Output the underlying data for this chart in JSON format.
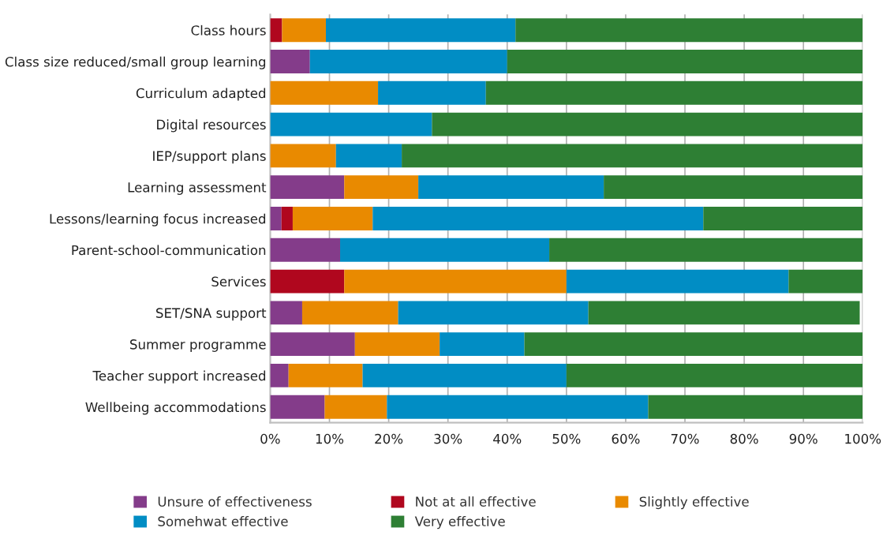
{
  "chart_data": {
    "type": "bar",
    "orientation": "horizontal",
    "stacked": true,
    "categories": [
      "Class hours",
      "Class size reduced/small group learning",
      "Curriculum adapted",
      "Digital resources",
      "IEP/support plans",
      "Learning assessment",
      "Lessons/learning focus increased",
      "Parent-school-communication",
      "Services",
      "SET/SNA support",
      "Summer programme",
      "Teacher support increased",
      "Wellbeing accommodations"
    ],
    "series": [
      {
        "name": "Unsure of effectiveness",
        "color": "#843c8a",
        "values": [
          0,
          6.7,
          0,
          0,
          0,
          12.5,
          1.9,
          11.8,
          0,
          5.4,
          14.3,
          3.1,
          9.2
        ]
      },
      {
        "name": "Not at all effective",
        "color": "#b0071e",
        "values": [
          2,
          0,
          0,
          0,
          0,
          0,
          1.9,
          0,
          12.5,
          0,
          0,
          0,
          0
        ]
      },
      {
        "name": "Slightly effective",
        "color": "#e98a00",
        "values": [
          7.4,
          0,
          18.2,
          0,
          11.1,
          12.5,
          13.5,
          0,
          37.5,
          16.2,
          14.3,
          12.5,
          10.5
        ]
      },
      {
        "name": "Somehwat effective",
        "color": "#018dc4",
        "values": [
          32,
          33.3,
          18.2,
          27.3,
          11.1,
          31.3,
          55.8,
          35.3,
          37.5,
          32.1,
          14.3,
          34.4,
          44.1
        ]
      },
      {
        "name": "Very effective",
        "color": "#2e7f34",
        "values": [
          58.6,
          60,
          63.6,
          72.7,
          77.8,
          43.7,
          26.9,
          52.9,
          12.5,
          45.8,
          57.1,
          50,
          36.2
        ]
      }
    ],
    "xlim": [
      0,
      100
    ],
    "xticks": [
      {
        "value": 0,
        "label": "0%"
      },
      {
        "value": 10,
        "label": "10%"
      },
      {
        "value": 20,
        "label": "20%"
      },
      {
        "value": 30,
        "label": "30%"
      },
      {
        "value": 40,
        "label": "40%"
      },
      {
        "value": 50,
        "label": "50%"
      },
      {
        "value": 60,
        "label": "60%"
      },
      {
        "value": 70,
        "label": "70%"
      },
      {
        "value": 80,
        "label": "80%"
      },
      {
        "value": 90,
        "label": "90%"
      },
      {
        "value": 100,
        "label": "100%"
      }
    ],
    "grid": "x",
    "legend": "bottom"
  }
}
